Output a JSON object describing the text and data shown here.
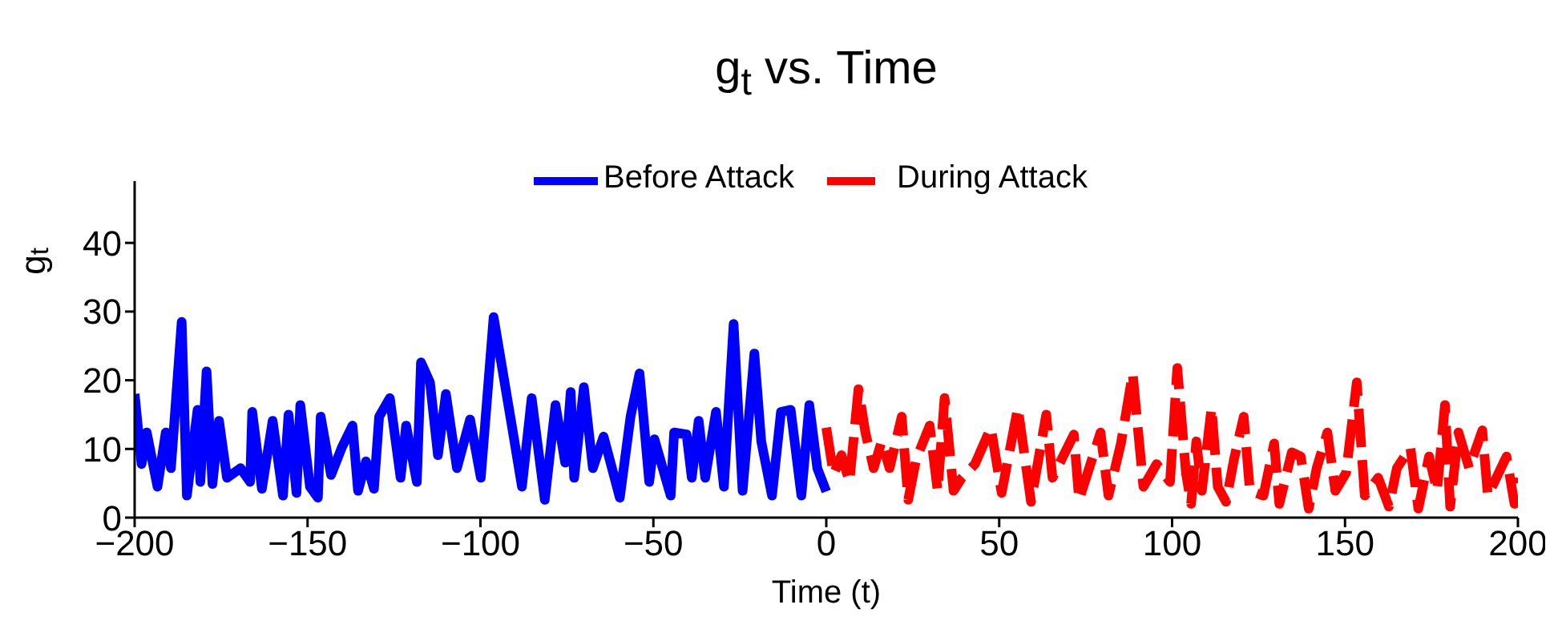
{
  "chart_data": {
    "type": "line",
    "title": "g$_{t}$ vs. Time",
    "xlabel": "Time (t)",
    "ylabel": "g$_{t}$",
    "xlim": [
      -200,
      200
    ],
    "xticks": [
      -200,
      -150,
      -100,
      -50,
      0,
      50,
      100,
      150,
      200
    ],
    "ylim": [
      0,
      49
    ],
    "yticks": [
      0,
      10,
      20,
      30,
      40
    ],
    "legend": "top",
    "grid": false,
    "series": [
      {
        "name": "Before Attack",
        "color": "#0000ff",
        "line_style": "solid",
        "x": [
          -200,
          -198,
          -196.5,
          -193.4,
          -191,
          -189.5,
          -186.4,
          -184.9,
          -181.8,
          -181,
          -179.2,
          -177.5,
          -175.6,
          -173.3,
          -169.4,
          -166.6,
          -166,
          -163.2,
          -160.1,
          -157.1,
          -155.5,
          -153.2,
          -152.1,
          -149.3,
          -147,
          -146.2,
          -143.2,
          -140.1,
          -137,
          -135.4,
          -133.1,
          -130.8,
          -129.3,
          -126.2,
          -123.1,
          -121.5,
          -118.4,
          -117.2,
          -114.6,
          -112.3,
          -110,
          -106.8,
          -103,
          -99.9,
          -96.2,
          -90.6,
          -88,
          -85.2,
          -81.4,
          -78.3,
          -75.5,
          -73.9,
          -72.9,
          -70.1,
          -67.5,
          -64.4,
          -59.7,
          -56.6,
          -54,
          -51.2,
          -49.7,
          -45,
          -44,
          -40.4,
          -38.9,
          -36.9,
          -35,
          -31.9,
          -29.6,
          -26.8,
          -24.2,
          -20.8,
          -18.8,
          -15.7,
          -13.1,
          -10.3,
          -7.2,
          -4.9,
          -2.6,
          0
        ],
        "values": [
          18,
          7.8,
          12.4,
          4.5,
          12.4,
          7.2,
          28.5,
          3.2,
          15.7,
          5.2,
          21.3,
          4.9,
          14.1,
          5.8,
          7.2,
          5.2,
          15.4,
          4.2,
          14.1,
          3.2,
          15,
          3.6,
          16.4,
          4.5,
          2.9,
          14.7,
          6.2,
          10.2,
          13.4,
          3.9,
          8.2,
          4.2,
          14.7,
          17.4,
          5.8,
          13.4,
          5.2,
          22.6,
          19.7,
          9.1,
          18,
          7.2,
          14.3,
          5.8,
          29.2,
          12.4,
          4.5,
          17.4,
          2.6,
          16.4,
          8,
          18.3,
          5.8,
          19,
          7.2,
          11.8,
          2.9,
          14.7,
          21,
          5.2,
          11.4,
          3.2,
          12.4,
          12.1,
          5.8,
          14.1,
          5.8,
          15.4,
          4.5,
          28.2,
          3.9,
          23.9,
          11.1,
          3.2,
          15.4,
          15.7,
          3.2,
          16.4,
          7.2,
          3.8
        ]
      },
      {
        "name": "During Attack",
        "color": "#ff0000",
        "line_style": "dashed",
        "x": [
          0,
          2.1,
          4.4,
          6.7,
          9.3,
          11.3,
          13.7,
          16,
          18.3,
          21.8,
          23.7,
          26,
          29.9,
          32.2,
          34.2,
          36.8,
          39.2,
          43,
          47.6,
          50.7,
          55.4,
          59.2,
          63.6,
          65.4,
          71.6,
          73.1,
          79.3,
          81.6,
          85.2,
          88.6,
          91.7,
          95.5,
          99.4,
          101.5,
          104,
          105.5,
          107,
          108.6,
          111.4,
          113.2,
          115.6,
          117.9,
          120.7,
          122.5,
          126.4,
          129.5,
          131,
          134.6,
          137.2,
          139.5,
          141.8,
          144.9,
          147.2,
          150.3,
          153.4,
          155.7,
          159.6,
          162.7,
          165,
          168.9,
          171.2,
          174.3,
          176.6,
          178.9,
          180.4,
          182.8,
          185.9,
          189.7,
          191.3,
          196.7,
          199,
          200
        ],
        "values": [
          13.1,
          6.3,
          9.1,
          5.2,
          18.7,
          12.4,
          7.2,
          11.1,
          7.2,
          14.7,
          2.6,
          8.5,
          13.4,
          3.9,
          17.4,
          3.9,
          5.8,
          7.8,
          13.1,
          3.6,
          16,
          2.3,
          15,
          5.8,
          12.1,
          2.6,
          12.4,
          3.2,
          10.8,
          21,
          4.5,
          7.8,
          5.2,
          21.8,
          6.5,
          2,
          11.1,
          3.9,
          16,
          4.5,
          2.3,
          8.5,
          14.7,
          3.9,
          3.2,
          10.8,
          2,
          9.5,
          8.9,
          1.3,
          7.2,
          12.4,
          3.9,
          6.5,
          19.7,
          3.2,
          5.8,
          1.6,
          7.2,
          10.2,
          1.3,
          8.9,
          3.9,
          16.4,
          1.6,
          12.4,
          7.2,
          12.7,
          3.2,
          8.9,
          2,
          5.8
        ]
      }
    ]
  }
}
